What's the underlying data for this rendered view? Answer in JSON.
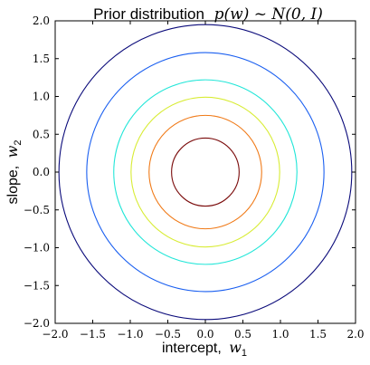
{
  "chart_data": {
    "type": "contour",
    "title": "Prior distribution",
    "title_math": "p(w) ~ N(0, I)",
    "xlabel": "intercept,",
    "xlabel_math": "w",
    "xlabel_sub": "1",
    "ylabel": "slope,",
    "ylabel_math": "w",
    "ylabel_sub": "2",
    "xlim": [
      -2.0,
      2.0
    ],
    "ylim": [
      -2.0,
      2.0
    ],
    "xticks": [
      "−2.0",
      "−1.5",
      "−1.0",
      "−0.5",
      "0.0",
      "0.5",
      "1.0",
      "1.5",
      "2.0"
    ],
    "yticks": [
      "2.0",
      "1.5",
      "1.0",
      "0.5",
      "0.0",
      "−0.5",
      "−1.0",
      "−1.5",
      "−2.0"
    ],
    "grid": false,
    "contours": [
      {
        "radius": 1.95,
        "color": "#0a0a7a"
      },
      {
        "radius": 1.58,
        "color": "#1a5ff0"
      },
      {
        "radius": 1.22,
        "color": "#22e6d8"
      },
      {
        "radius": 0.99,
        "color": "#d8ec34"
      },
      {
        "radius": 0.75,
        "color": "#f07a18"
      },
      {
        "radius": 0.45,
        "color": "#7a0a0a"
      }
    ]
  }
}
